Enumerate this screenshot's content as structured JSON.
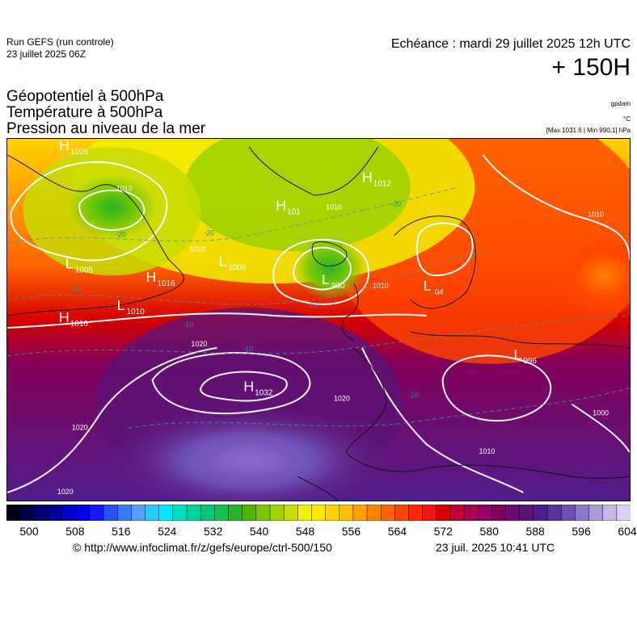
{
  "header": {
    "run_title": "Run GEFS (run controle)",
    "run_date": "23 juillet 2025 06Z",
    "echeance": "Echéance : mardi 29 juillet 2025 12h UTC",
    "horizon": "+ 150H"
  },
  "parameters": [
    "Géopotentiel à 500hPa",
    "Température à 500hPa",
    "Pression au niveau de la mer"
  ],
  "units": {
    "geopotential": "gpdam",
    "temperature": "°C",
    "extrema": "[Max 1031.6 | Min 990.1] hPa"
  },
  "map": {
    "pressure_centers": [
      {
        "type": "H",
        "value": "1028"
      },
      {
        "type": "L",
        "value": "1005"
      },
      {
        "type": "H",
        "value": "1016"
      },
      {
        "type": "L",
        "value": "1010"
      },
      {
        "type": "H",
        "value": "1016"
      },
      {
        "type": "H",
        "value": "101"
      },
      {
        "type": "L",
        "value": "1006"
      },
      {
        "type": "L",
        "value": "990"
      },
      {
        "type": "H",
        "value": "1012"
      },
      {
        "type": "H",
        "value": "1032"
      },
      {
        "type": "L",
        "value": "996"
      },
      {
        "type": "L",
        "value": "04"
      }
    ],
    "isobar_labels": [
      "1010",
      "1010",
      "1010",
      "1020",
      "1020",
      "1020",
      "1020",
      "1010",
      "1010",
      "1000",
      "1010"
    ],
    "isotherm_labels": [
      "-20",
      "-20",
      "-20",
      "-15",
      "-10",
      "-10",
      "-10",
      "-20"
    ]
  },
  "colorbar": {
    "colors": [
      "#000018",
      "#000048",
      "#000070",
      "#00009a",
      "#0000c8",
      "#0000f0",
      "#1818ff",
      "#2850ff",
      "#3c78ff",
      "#50a0ff",
      "#28c8ff",
      "#00e8ff",
      "#00e0c0",
      "#00d49a",
      "#00c878",
      "#14c050",
      "#28b428",
      "#50b400",
      "#78c800",
      "#a0d200",
      "#c8dc00",
      "#f0f000",
      "#ffe600",
      "#ffd200",
      "#ffbe00",
      "#ffa000",
      "#ff8200",
      "#ff6400",
      "#ff4600",
      "#ff2800",
      "#f01414",
      "#d70000",
      "#c00032",
      "#aa0050",
      "#960064",
      "#82005a",
      "#6e0a6e",
      "#5a1478",
      "#501e8c",
      "#5a329c",
      "#6e50b4",
      "#8c78c8",
      "#aa9ad6",
      "#c8b8e4",
      "#dccff0"
    ],
    "ticks": [
      "500",
      "508",
      "516",
      "524",
      "532",
      "540",
      "548",
      "556",
      "564",
      "572",
      "580",
      "588",
      "596",
      "604"
    ]
  },
  "footer": {
    "copyright": "© http://www.infoclimat.fr/z/gefs/europe/ctrl-500/150",
    "timestamp": "23 juil. 2025 10:41 UTC"
  }
}
